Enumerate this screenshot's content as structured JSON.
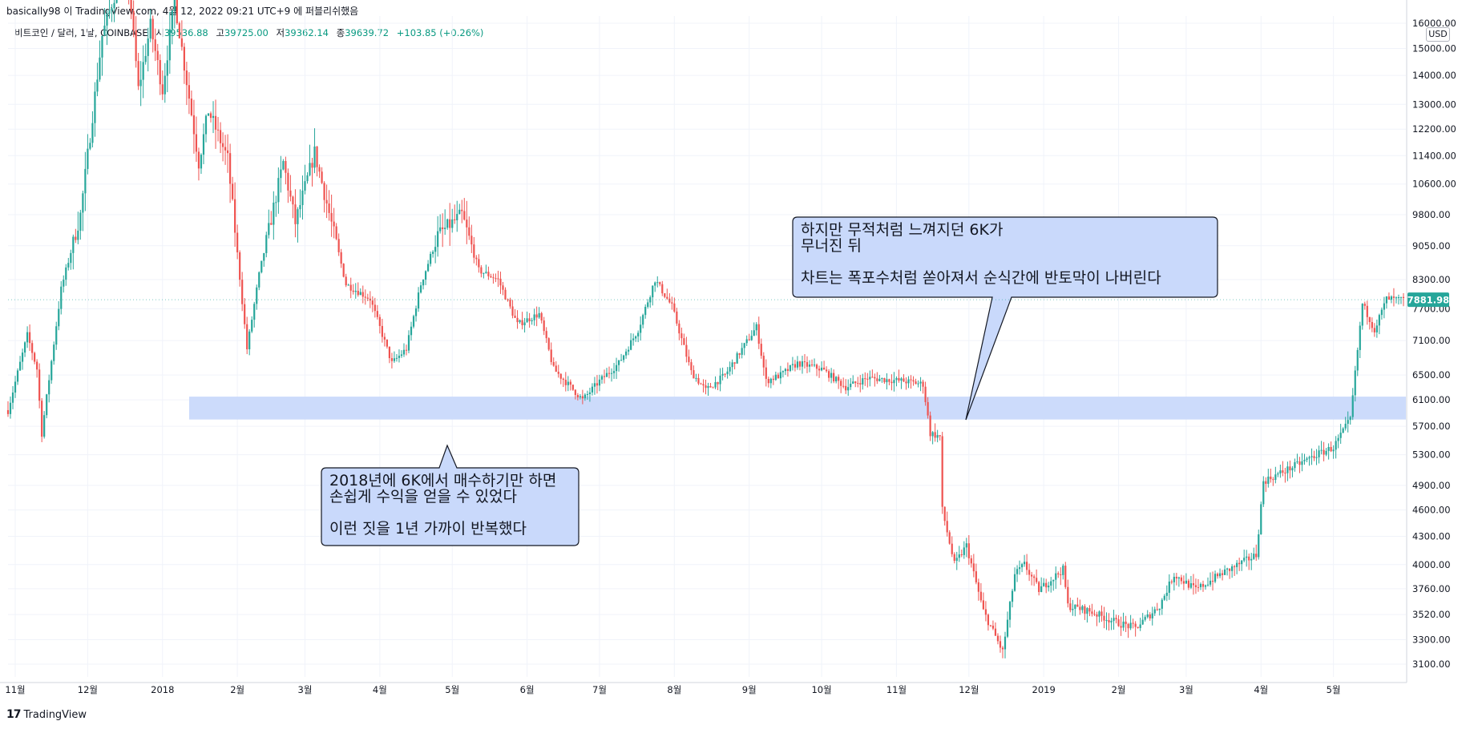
{
  "header": {
    "published": "basically98 이 TradingView.com, 4월 12, 2022 09:21 UTC+9 에 퍼블리쉬했음"
  },
  "legend": {
    "symbol": "비트코인 / 달러, 1날, COINBASE",
    "open_label": "시",
    "open": "39536.88",
    "high_label": "고",
    "high": "39725.00",
    "low_label": "저",
    "low": "39362.14",
    "close_label": "종",
    "close": "39639.72",
    "change": "+103.85 (+0.26%)"
  },
  "currency": "USD",
  "footer": {
    "logo_text": "TradingView"
  },
  "colors": {
    "up": "#26a69a",
    "down": "#ef5350",
    "zone": "#c9d9fb",
    "callout_fill": "#c9d9fb",
    "price_tag": "#26a69a"
  },
  "annotations": {
    "top_callout": "하지만 무적처럼 느껴지던 6K가\n무너진 뒤\n\n차트는 폭포수처럼 쏟아져서 순식간에 반토막이 나버린다",
    "bottom_callout": "2018년에 6K에서 매수하기만 하면\n손쉽게 수익을 얻을 수 있었다\n\n이런 짓을 1년 가까이 반복했다"
  },
  "chart_data": {
    "type": "candlestick",
    "y_scale": "log",
    "y_range": [
      3000,
      16300
    ],
    "y_ticks": [
      16000,
      15000,
      14000,
      13000,
      12200,
      11400,
      10600,
      9800,
      9050,
      8300,
      7700,
      7100,
      6500,
      6100,
      5700,
      5300,
      4900,
      4600,
      4300,
      4000,
      3760,
      3520,
      3300,
      3100
    ],
    "y_tick_labels": [
      "16000.00",
      "15000.00",
      "14000.00",
      "13000.00",
      "12200.00",
      "11400.00",
      "10600.00",
      "9800.00",
      "9050.00",
      "8300.00",
      "7700.00",
      "7100.00",
      "6500.00",
      "6100.00",
      "5700.00",
      "5300.00",
      "4900.00",
      "4600.00",
      "4300.00",
      "4000.00",
      "3760.00",
      "3520.00",
      "3300.00",
      "3100.00"
    ],
    "x_labels": [
      "11월",
      "12월",
      "2018",
      "2월",
      "3월",
      "4월",
      "5월",
      "6월",
      "7월",
      "8월",
      "9월",
      "10월",
      "11월",
      "12월",
      "2019",
      "2월",
      "3월",
      "4월",
      "5월"
    ],
    "x_range": [
      "2017-10-29",
      "2019-05-31"
    ],
    "last_price": 7881.98,
    "last_price_label": "7881.98",
    "support_zone": [
      5800,
      6150
    ],
    "path": [
      [
        "2017-10-28",
        5800
      ],
      [
        "2017-11-06",
        7200
      ],
      [
        "2017-11-10",
        6600
      ],
      [
        "2017-11-12",
        5600
      ],
      [
        "2017-11-20",
        8100
      ],
      [
        "2017-11-28",
        9800
      ],
      [
        "2017-12-07",
        15500
      ],
      [
        "2017-12-17",
        19000
      ],
      [
        "2017-12-22",
        13500
      ],
      [
        "2017-12-27",
        15900
      ],
      [
        "2018-01-01",
        13500
      ],
      [
        "2018-01-06",
        17000
      ],
      [
        "2018-01-16",
        11200
      ],
      [
        "2018-01-20",
        12800
      ],
      [
        "2018-01-28",
        11300
      ],
      [
        "2018-02-05",
        6950
      ],
      [
        "2018-02-10",
        8400
      ],
      [
        "2018-02-20",
        11200
      ],
      [
        "2018-02-25",
        9600
      ],
      [
        "2018-03-05",
        11500
      ],
      [
        "2018-03-18",
        8200
      ],
      [
        "2018-03-28",
        7900
      ],
      [
        "2018-04-06",
        6700
      ],
      [
        "2018-04-12",
        6950
      ],
      [
        "2018-04-18",
        8200
      ],
      [
        "2018-04-25",
        9300
      ],
      [
        "2018-05-05",
        9800
      ],
      [
        "2018-05-12",
        8500
      ],
      [
        "2018-05-20",
        8300
      ],
      [
        "2018-05-28",
        7400
      ],
      [
        "2018-06-06",
        7600
      ],
      [
        "2018-06-12",
        6600
      ],
      [
        "2018-06-24",
        6100
      ],
      [
        "2018-07-01",
        6400
      ],
      [
        "2018-07-09",
        6700
      ],
      [
        "2018-07-17",
        7300
      ],
      [
        "2018-07-24",
        8300
      ],
      [
        "2018-07-31",
        7750
      ],
      [
        "2018-08-08",
        6550
      ],
      [
        "2018-08-14",
        6250
      ],
      [
        "2018-08-22",
        6500
      ],
      [
        "2018-09-04",
        7350
      ],
      [
        "2018-09-08",
        6400
      ],
      [
        "2018-09-14",
        6500
      ],
      [
        "2018-09-21",
        6700
      ],
      [
        "2018-10-01",
        6600
      ],
      [
        "2018-10-11",
        6300
      ],
      [
        "2018-10-20",
        6450
      ],
      [
        "2018-11-04",
        6400
      ],
      [
        "2018-11-12",
        6350
      ],
      [
        "2018-11-15",
        5600
      ],
      [
        "2018-11-19",
        5550
      ],
      [
        "2018-11-20",
        4600
      ],
      [
        "2018-11-25",
        4000
      ],
      [
        "2018-11-30",
        4200
      ],
      [
        "2018-12-07",
        3550
      ],
      [
        "2018-12-15",
        3200
      ],
      [
        "2018-12-20",
        3900
      ],
      [
        "2018-12-24",
        4000
      ],
      [
        "2018-12-30",
        3750
      ],
      [
        "2019-01-09",
        3950
      ],
      [
        "2019-01-11",
        3600
      ],
      [
        "2019-01-20",
        3550
      ],
      [
        "2019-01-31",
        3450
      ],
      [
        "2019-02-08",
        3400
      ],
      [
        "2019-02-18",
        3600
      ],
      [
        "2019-02-24",
        3900
      ],
      [
        "2019-03-05",
        3750
      ],
      [
        "2019-03-15",
        3900
      ],
      [
        "2019-03-30",
        4100
      ],
      [
        "2019-04-02",
        4950
      ],
      [
        "2019-04-15",
        5150
      ],
      [
        "2019-04-24",
        5300
      ],
      [
        "2019-05-01",
        5400
      ],
      [
        "2019-05-08",
        5800
      ],
      [
        "2019-05-13",
        7800
      ],
      [
        "2019-05-18",
        7300
      ],
      [
        "2019-05-23",
        7900
      ],
      [
        "2019-05-29",
        7880
      ]
    ]
  }
}
